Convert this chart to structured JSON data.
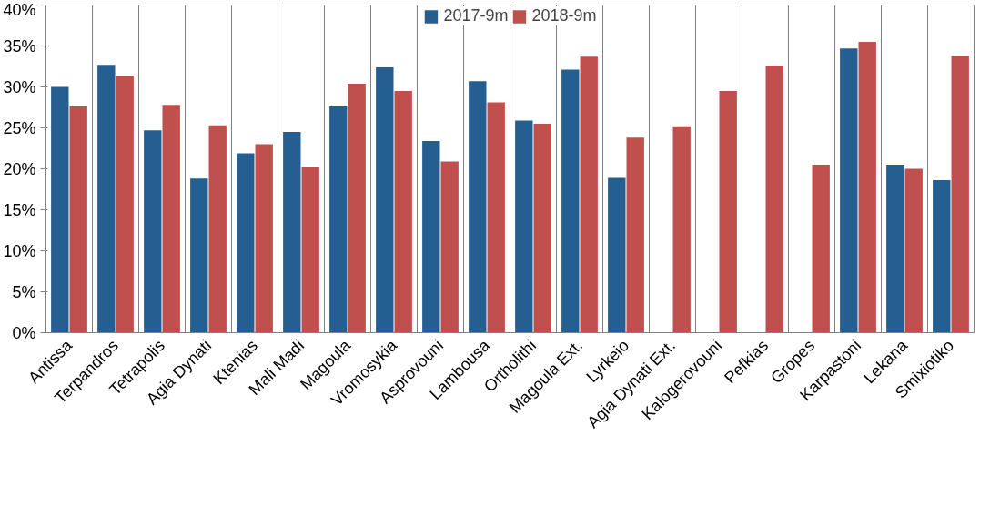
{
  "chart_data": {
    "type": "bar",
    "categories": [
      "Antissa",
      "Terpandros",
      "Tetrapolis",
      "Agia Dynati",
      "Ktenias",
      "Mali Madi",
      "Magoula",
      "Vromosykia",
      "Asprovouni",
      "Lambousa",
      "Ortholithi",
      "Magoula Ext.",
      "Lyrkeio",
      "Agia Dynati Ext.",
      "Kalogerovouni",
      "Pefkias",
      "Gropes",
      "Karpastoni",
      "Lekana",
      "Smixiotiko"
    ],
    "series": [
      {
        "name": "2017-9m",
        "color": "#255e91",
        "values": [
          30.0,
          32.7,
          24.7,
          18.8,
          21.9,
          24.5,
          27.6,
          32.4,
          23.4,
          30.7,
          25.9,
          32.1,
          18.9,
          null,
          null,
          null,
          null,
          34.7,
          20.5,
          18.6
        ]
      },
      {
        "name": "2018-9m",
        "color": "#c0504d",
        "values": [
          27.6,
          31.4,
          27.8,
          25.3,
          23.0,
          20.2,
          30.4,
          29.5,
          20.9,
          28.1,
          25.5,
          33.7,
          23.8,
          25.2,
          29.5,
          32.6,
          20.5,
          35.5,
          20.0,
          33.8
        ]
      }
    ],
    "ylim": [
      0,
      40
    ],
    "yticks": [
      {
        "value": 0,
        "label": "0%"
      },
      {
        "value": 5,
        "label": "5%"
      },
      {
        "value": 10,
        "label": "10%"
      },
      {
        "value": 15,
        "label": "15%"
      },
      {
        "value": 20,
        "label": "20%"
      },
      {
        "value": 25,
        "label": "25%"
      },
      {
        "value": 30,
        "label": "30%"
      },
      {
        "value": 35,
        "label": "35%"
      },
      {
        "value": 40,
        "label": "40%"
      }
    ],
    "grid": "x",
    "legend": "top"
  }
}
